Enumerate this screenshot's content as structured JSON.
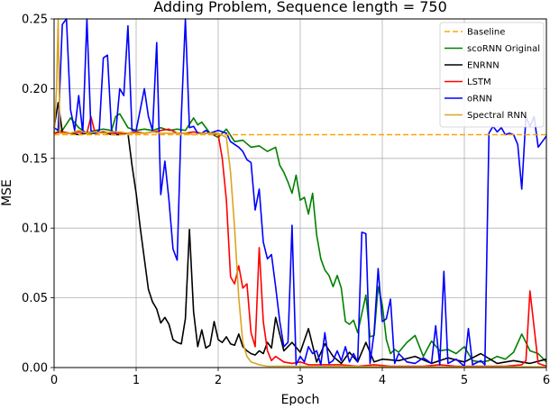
{
  "chart_data": {
    "type": "line",
    "title": "Adding Problem, Sequence length = 750",
    "xlabel": "Epoch",
    "ylabel": "MSE",
    "xlim": [
      0,
      6
    ],
    "ylim": [
      0,
      0.25
    ],
    "xticks": [
      0,
      1,
      2,
      3,
      4,
      5,
      6
    ],
    "xtick_labels": [
      "0",
      "1",
      "2",
      "3",
      "4",
      "5",
      "6"
    ],
    "yticks": [
      0.0,
      0.05,
      0.1,
      0.15,
      0.2,
      0.25
    ],
    "ytick_labels": [
      "0.00",
      "0.05",
      "0.10",
      "0.15",
      "0.20",
      "0.25"
    ],
    "grid": true,
    "legend_position": "top-right",
    "series": [
      {
        "name": "Baseline",
        "color": "#ffa500",
        "dash": "dashed",
        "x": [
          0,
          6
        ],
        "y": [
          0.167,
          0.167
        ]
      },
      {
        "name": "scoRNN Original",
        "color": "#008000",
        "dash": "solid",
        "x": [
          0.0,
          0.1,
          0.2,
          0.3,
          0.4,
          0.5,
          0.6,
          0.7,
          0.75,
          0.8,
          0.9,
          1.0,
          1.1,
          1.2,
          1.3,
          1.4,
          1.5,
          1.6,
          1.7,
          1.75,
          1.8,
          1.9,
          2.0,
          2.1,
          2.2,
          2.3,
          2.4,
          2.5,
          2.6,
          2.7,
          2.75,
          2.8,
          2.85,
          2.9,
          2.95,
          3.0,
          3.05,
          3.1,
          3.15,
          3.2,
          3.25,
          3.3,
          3.35,
          3.4,
          3.45,
          3.5,
          3.55,
          3.6,
          3.65,
          3.7,
          3.8,
          3.85,
          3.9,
          3.95,
          4.0,
          4.05,
          4.1,
          4.15,
          4.2,
          4.3,
          4.4,
          4.5,
          4.6,
          4.7,
          4.8,
          4.9,
          5.0,
          5.1,
          5.2,
          5.3,
          5.4,
          5.5,
          5.6,
          5.7,
          5.75,
          5.8,
          5.9,
          6.0
        ],
        "y": [
          0.168,
          0.17,
          0.179,
          0.172,
          0.168,
          0.17,
          0.171,
          0.17,
          0.18,
          0.182,
          0.172,
          0.17,
          0.171,
          0.17,
          0.172,
          0.17,
          0.171,
          0.17,
          0.179,
          0.174,
          0.176,
          0.168,
          0.165,
          0.171,
          0.162,
          0.163,
          0.158,
          0.159,
          0.155,
          0.158,
          0.145,
          0.14,
          0.133,
          0.125,
          0.138,
          0.12,
          0.122,
          0.11,
          0.125,
          0.095,
          0.078,
          0.07,
          0.066,
          0.058,
          0.066,
          0.057,
          0.033,
          0.031,
          0.034,
          0.025,
          0.052,
          0.022,
          0.023,
          0.058,
          0.045,
          0.02,
          0.01,
          0.013,
          0.011,
          0.018,
          0.023,
          0.008,
          0.019,
          0.012,
          0.013,
          0.01,
          0.015,
          0.005,
          0.004,
          0.005,
          0.008,
          0.006,
          0.011,
          0.024,
          0.018,
          0.012,
          0.01,
          0.004
        ]
      },
      {
        "name": "ENRNN",
        "color": "#000000",
        "dash": "solid",
        "x": [
          0.0,
          0.05,
          0.1,
          0.15,
          0.2,
          0.3,
          0.4,
          0.5,
          0.6,
          0.7,
          0.8,
          0.9,
          0.95,
          1.0,
          1.05,
          1.1,
          1.15,
          1.2,
          1.25,
          1.3,
          1.35,
          1.4,
          1.45,
          1.5,
          1.55,
          1.6,
          1.65,
          1.7,
          1.75,
          1.8,
          1.85,
          1.9,
          1.95,
          2.0,
          2.05,
          2.1,
          2.15,
          2.2,
          2.25,
          2.3,
          2.35,
          2.4,
          2.45,
          2.5,
          2.55,
          2.6,
          2.65,
          2.7,
          2.8,
          2.9,
          3.0,
          3.1,
          3.2,
          3.3,
          3.4,
          3.5,
          3.6,
          3.7,
          3.8,
          3.9,
          4.0,
          4.2,
          4.4,
          4.6,
          4.8,
          5.0,
          5.2,
          5.4,
          5.6,
          5.8,
          6.0
        ],
        "y": [
          0.172,
          0.19,
          0.169,
          0.168,
          0.168,
          0.167,
          0.168,
          0.168,
          0.169,
          0.167,
          0.167,
          0.168,
          0.145,
          0.125,
          0.1,
          0.078,
          0.056,
          0.047,
          0.042,
          0.032,
          0.036,
          0.031,
          0.02,
          0.018,
          0.017,
          0.035,
          0.099,
          0.04,
          0.015,
          0.027,
          0.014,
          0.016,
          0.033,
          0.02,
          0.018,
          0.022,
          0.017,
          0.016,
          0.024,
          0.015,
          0.012,
          0.01,
          0.009,
          0.012,
          0.01,
          0.018,
          0.014,
          0.036,
          0.012,
          0.018,
          0.011,
          0.028,
          0.004,
          0.017,
          0.008,
          0.003,
          0.011,
          0.004,
          0.018,
          0.004,
          0.006,
          0.005,
          0.008,
          0.003,
          0.007,
          0.004,
          0.01,
          0.003,
          0.005,
          0.003,
          0.006
        ]
      },
      {
        "name": "LSTM",
        "color": "#ff0000",
        "dash": "solid",
        "x": [
          0.0,
          0.1,
          0.2,
          0.3,
          0.4,
          0.45,
          0.5,
          0.6,
          0.7,
          0.8,
          0.9,
          1.0,
          1.1,
          1.2,
          1.3,
          1.4,
          1.5,
          1.6,
          1.7,
          1.8,
          1.9,
          2.0,
          2.05,
          2.1,
          2.15,
          2.2,
          2.25,
          2.3,
          2.35,
          2.4,
          2.45,
          2.5,
          2.55,
          2.6,
          2.65,
          2.7,
          2.8,
          2.9,
          3.0,
          3.1,
          3.3,
          3.5,
          3.7,
          3.9,
          4.1,
          4.3,
          4.5,
          4.7,
          4.9,
          5.1,
          5.3,
          5.5,
          5.7,
          5.75,
          5.8,
          5.9,
          6.0
        ],
        "y": [
          0.168,
          0.169,
          0.168,
          0.169,
          0.168,
          0.18,
          0.168,
          0.169,
          0.168,
          0.168,
          0.168,
          0.169,
          0.168,
          0.169,
          0.17,
          0.171,
          0.168,
          0.168,
          0.169,
          0.168,
          0.168,
          0.167,
          0.15,
          0.12,
          0.065,
          0.06,
          0.073,
          0.057,
          0.06,
          0.025,
          0.015,
          0.086,
          0.033,
          0.012,
          0.005,
          0.008,
          0.004,
          0.003,
          0.004,
          0.002,
          0.002,
          0.002,
          0.001,
          0.002,
          0.001,
          0.001,
          0.001,
          0.002,
          0.001,
          0.001,
          0.001,
          0.001,
          0.002,
          0.005,
          0.055,
          0.003,
          0.001
        ]
      },
      {
        "name": "oRNN",
        "color": "#0000ff",
        "dash": "solid",
        "x": [
          0.0,
          0.05,
          0.1,
          0.15,
          0.2,
          0.25,
          0.3,
          0.35,
          0.4,
          0.45,
          0.5,
          0.55,
          0.6,
          0.65,
          0.7,
          0.75,
          0.8,
          0.85,
          0.9,
          0.95,
          1.0,
          1.05,
          1.1,
          1.15,
          1.2,
          1.25,
          1.3,
          1.35,
          1.4,
          1.45,
          1.5,
          1.55,
          1.6,
          1.65,
          1.7,
          1.75,
          1.8,
          1.85,
          1.9,
          2.0,
          2.1,
          2.15,
          2.2,
          2.25,
          2.3,
          2.35,
          2.4,
          2.45,
          2.5,
          2.55,
          2.6,
          2.65,
          2.7,
          2.75,
          2.8,
          2.85,
          2.9,
          2.95,
          3.0,
          3.05,
          3.1,
          3.15,
          3.2,
          3.25,
          3.3,
          3.35,
          3.4,
          3.45,
          3.5,
          3.55,
          3.6,
          3.65,
          3.7,
          3.75,
          3.8,
          3.85,
          3.9,
          3.95,
          4.0,
          4.05,
          4.1,
          4.15,
          4.2,
          4.3,
          4.4,
          4.5,
          4.6,
          4.65,
          4.7,
          4.75,
          4.8,
          4.9,
          5.0,
          5.05,
          5.1,
          5.2,
          5.25,
          5.3,
          5.35,
          5.4,
          5.45,
          5.5,
          5.55,
          5.6,
          5.65,
          5.7,
          5.75,
          5.8,
          5.85,
          5.9,
          5.95,
          6.0
        ],
        "y": [
          0.172,
          0.17,
          0.246,
          0.25,
          0.185,
          0.17,
          0.195,
          0.168,
          0.25,
          0.17,
          0.168,
          0.17,
          0.222,
          0.224,
          0.17,
          0.168,
          0.2,
          0.195,
          0.245,
          0.17,
          0.17,
          0.185,
          0.2,
          0.18,
          0.17,
          0.233,
          0.124,
          0.148,
          0.12,
          0.085,
          0.077,
          0.18,
          0.25,
          0.172,
          0.173,
          0.168,
          0.168,
          0.17,
          0.168,
          0.17,
          0.168,
          0.162,
          0.16,
          0.158,
          0.155,
          0.149,
          0.147,
          0.113,
          0.128,
          0.09,
          0.078,
          0.081,
          0.058,
          0.033,
          0.015,
          0.018,
          0.102,
          0.002,
          0.008,
          0.004,
          0.015,
          0.01,
          0.012,
          0.002,
          0.025,
          0.003,
          0.005,
          0.012,
          0.005,
          0.015,
          0.004,
          0.01,
          0.004,
          0.097,
          0.096,
          0.003,
          0.025,
          0.071,
          0.033,
          0.035,
          0.049,
          0.003,
          0.01,
          0.004,
          0.003,
          0.007,
          0.003,
          0.03,
          0.002,
          0.069,
          0.003,
          0.006,
          0.001,
          0.028,
          0.002,
          0.005,
          0.002,
          0.168,
          0.173,
          0.169,
          0.172,
          0.167,
          0.168,
          0.167,
          0.16,
          0.128,
          0.18,
          0.173,
          0.18,
          0.158,
          0.162,
          0.166
        ]
      },
      {
        "name": "Spectral RNN",
        "color": "#daa520",
        "dash": "solid",
        "x": [
          0.0,
          0.03,
          0.05,
          0.07,
          0.1,
          0.2,
          0.3,
          0.4,
          0.5,
          0.6,
          0.7,
          0.8,
          0.9,
          1.0,
          1.1,
          1.2,
          1.3,
          1.4,
          1.5,
          1.6,
          1.7,
          1.8,
          1.9,
          2.0,
          2.1,
          2.15,
          2.2,
          2.25,
          2.3,
          2.35,
          2.4,
          2.5,
          2.6,
          2.8,
          3.0,
          3.5,
          4.0,
          4.5,
          5.0,
          5.5,
          6.0
        ],
        "y": [
          0.168,
          0.2,
          0.25,
          0.168,
          0.168,
          0.168,
          0.17,
          0.168,
          0.169,
          0.168,
          0.169,
          0.169,
          0.168,
          0.168,
          0.168,
          0.169,
          0.168,
          0.168,
          0.168,
          0.168,
          0.167,
          0.168,
          0.168,
          0.168,
          0.165,
          0.14,
          0.1,
          0.05,
          0.018,
          0.008,
          0.004,
          0.002,
          0.001,
          0.001,
          0.001,
          0.001,
          0.0005,
          0.0005,
          0.0005,
          0.0005,
          0.0005
        ]
      }
    ]
  }
}
